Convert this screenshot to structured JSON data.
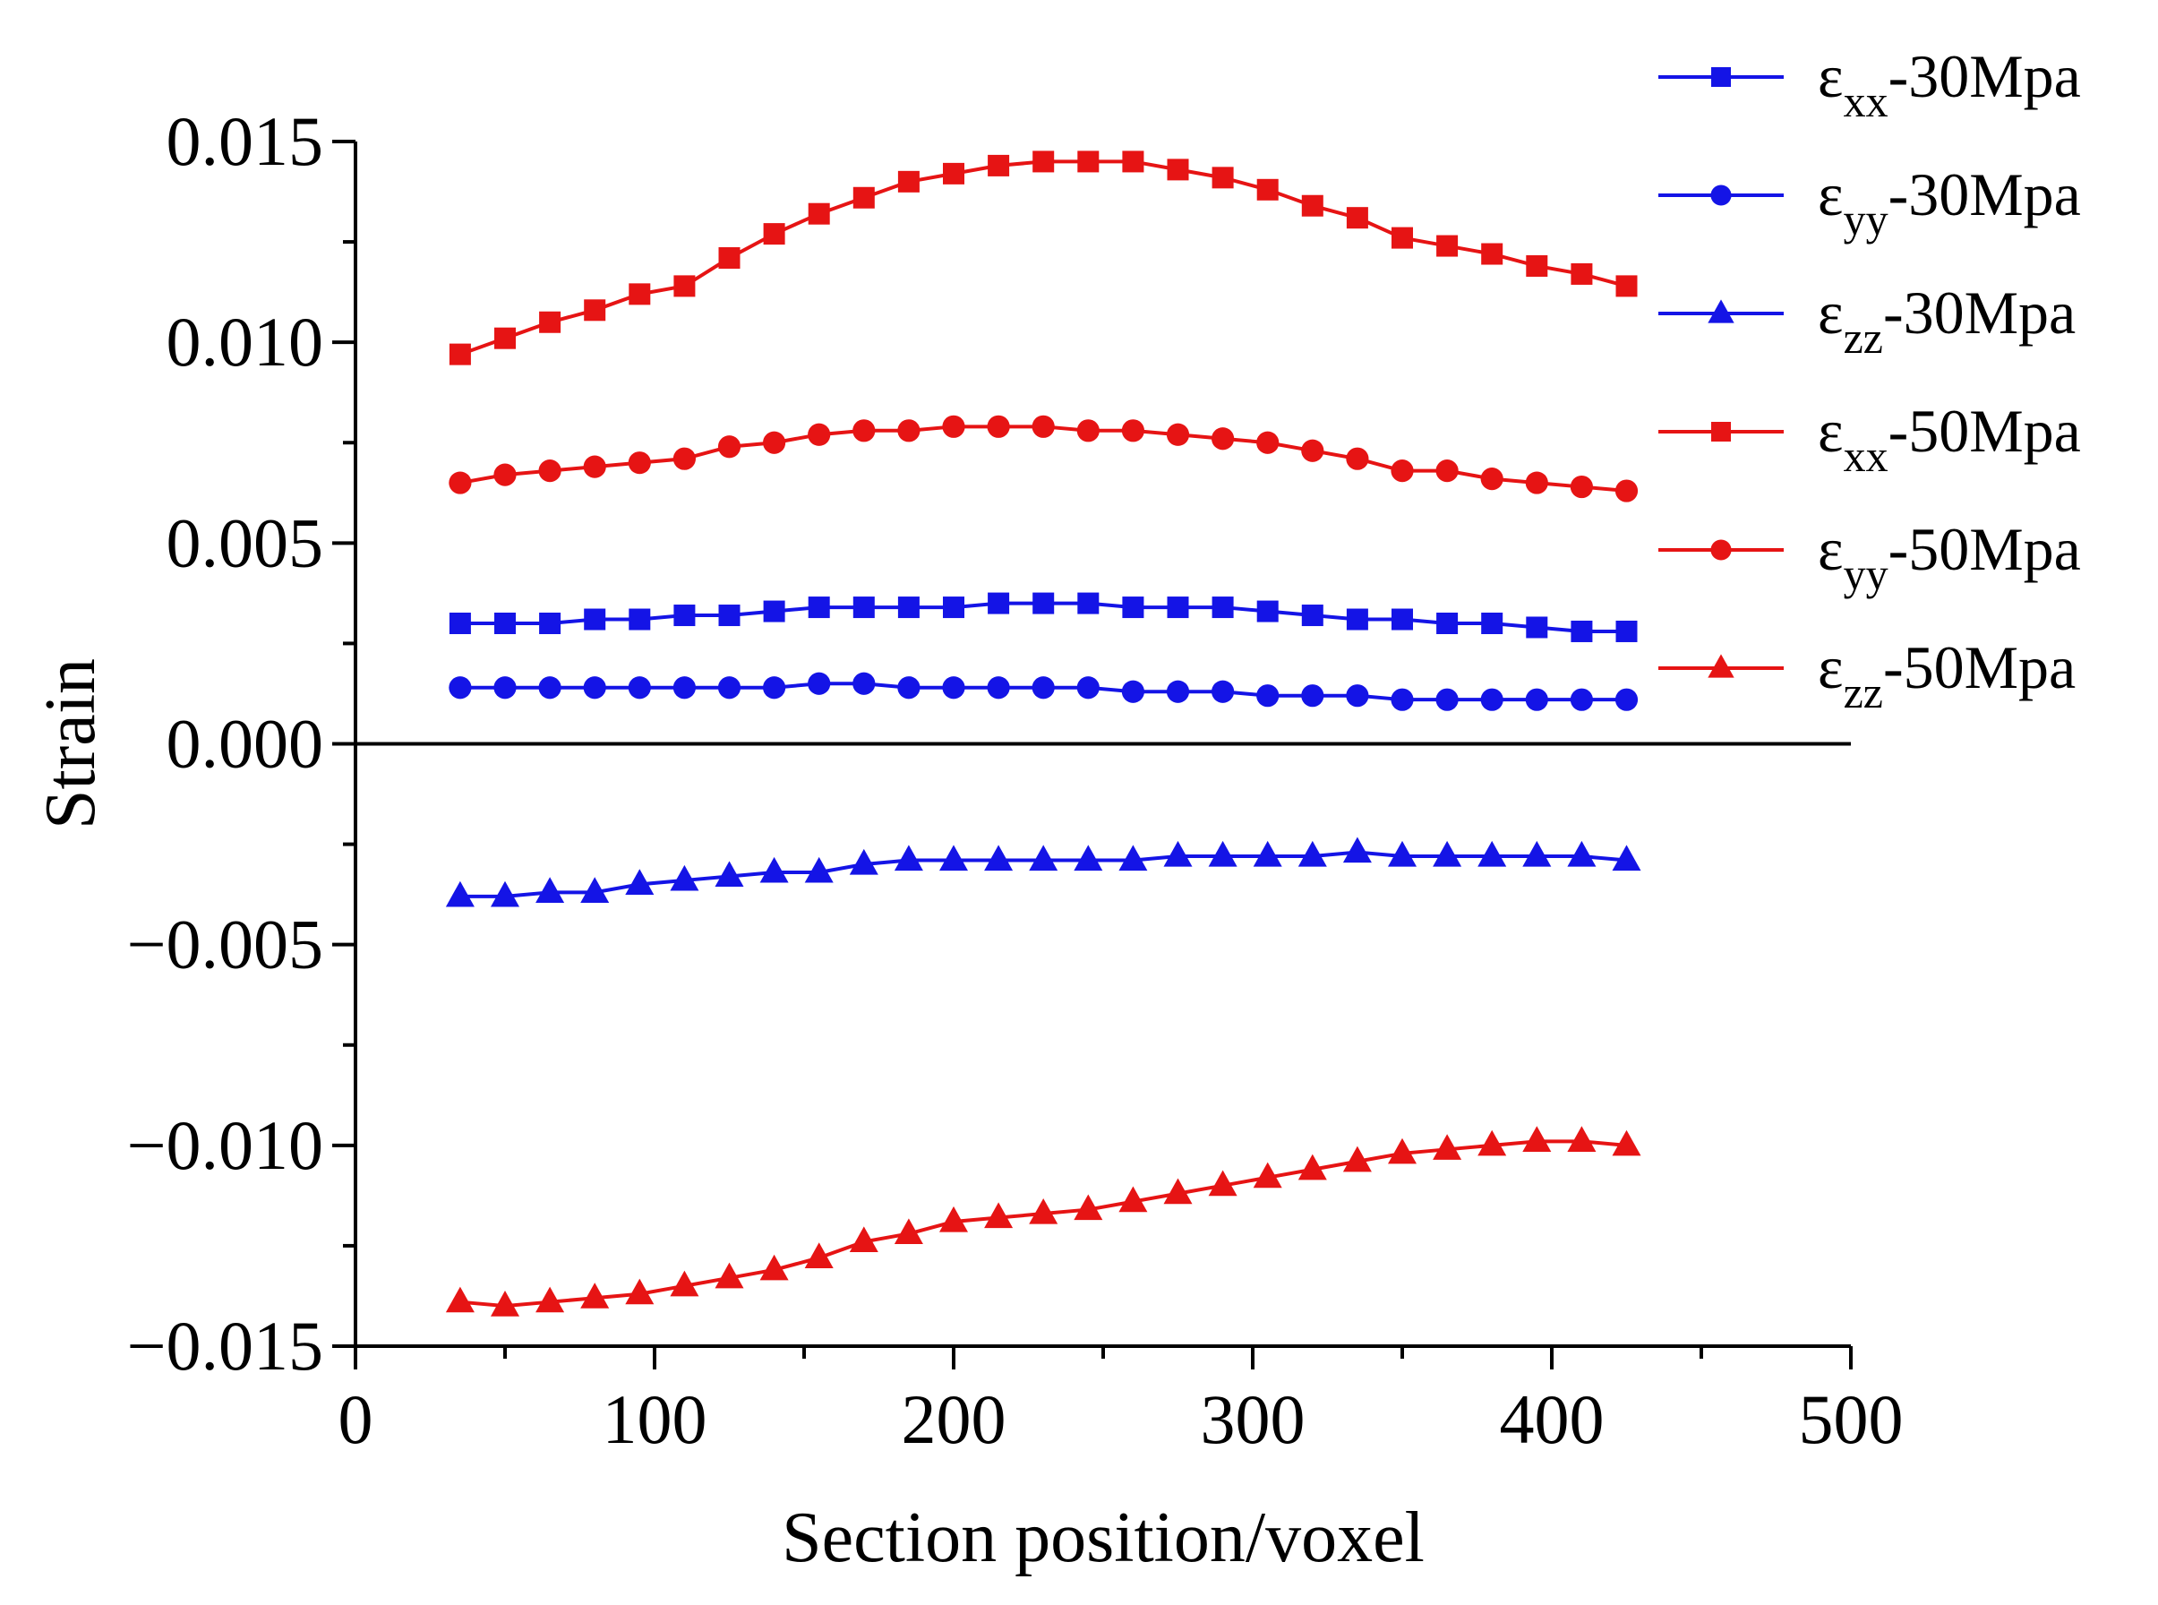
{
  "chart_data": {
    "type": "line",
    "title": "",
    "xlabel": "Section position/voxel",
    "ylabel": "Strain",
    "xlim": [
      0,
      500
    ],
    "ylim": [
      -0.015,
      0.015
    ],
    "x_ticks": [
      0,
      100,
      200,
      300,
      400,
      500
    ],
    "x_tick_labels": [
      "0",
      "100",
      "200",
      "300",
      "400",
      "500"
    ],
    "y_ticks": [
      -0.015,
      -0.01,
      -0.005,
      0,
      0.005,
      0.01,
      0.015
    ],
    "y_tick_labels": [
      "−0.015",
      "−0.010",
      "−0.005",
      "0.000",
      "0.005",
      "0.010",
      "0.015"
    ],
    "legend_position": "top-right",
    "x": [
      35,
      50,
      65,
      80,
      95,
      110,
      125,
      140,
      155,
      170,
      185,
      200,
      215,
      230,
      245,
      260,
      275,
      290,
      305,
      320,
      335,
      350,
      365,
      380,
      395,
      410,
      425
    ],
    "series": [
      {
        "name": "εxx-30Mpa",
        "label_main": "ε",
        "label_sub": "xx",
        "label_suffix": "-30Mpa",
        "color": "#1414e6",
        "marker": "square",
        "values": [
          0.003,
          0.003,
          0.003,
          0.0031,
          0.0031,
          0.0032,
          0.0032,
          0.0033,
          0.0034,
          0.0034,
          0.0034,
          0.0034,
          0.0035,
          0.0035,
          0.0035,
          0.0034,
          0.0034,
          0.0034,
          0.0033,
          0.0032,
          0.0031,
          0.0031,
          0.003,
          0.003,
          0.0029,
          0.0028,
          0.0028
        ]
      },
      {
        "name": "εyy-30Mpa",
        "label_main": "ε",
        "label_sub": "yy",
        "label_suffix": "-30Mpa",
        "color": "#1414e6",
        "marker": "circle",
        "values": [
          0.0014,
          0.0014,
          0.0014,
          0.0014,
          0.0014,
          0.0014,
          0.0014,
          0.0014,
          0.0015,
          0.0015,
          0.0014,
          0.0014,
          0.0014,
          0.0014,
          0.0014,
          0.0013,
          0.0013,
          0.0013,
          0.0012,
          0.0012,
          0.0012,
          0.0011,
          0.0011,
          0.0011,
          0.0011,
          0.0011,
          0.0011
        ]
      },
      {
        "name": "εzz-30Mpa",
        "label_main": "ε",
        "label_sub": "zz",
        "label_suffix": "-30Mpa",
        "color": "#1414e6",
        "marker": "triangle",
        "values": [
          -0.0038,
          -0.0038,
          -0.0037,
          -0.0037,
          -0.0035,
          -0.0034,
          -0.0033,
          -0.0032,
          -0.0032,
          -0.003,
          -0.0029,
          -0.0029,
          -0.0029,
          -0.0029,
          -0.0029,
          -0.0029,
          -0.0028,
          -0.0028,
          -0.0028,
          -0.0028,
          -0.0027,
          -0.0028,
          -0.0028,
          -0.0028,
          -0.0028,
          -0.0028,
          -0.0029
        ]
      },
      {
        "name": "εxx-50Mpa",
        "label_main": "ε",
        "label_sub": "xx",
        "label_suffix": "-50Mpa",
        "color": "#e61414",
        "marker": "square",
        "values": [
          0.0097,
          0.0101,
          0.0105,
          0.0108,
          0.0112,
          0.0114,
          0.0121,
          0.0127,
          0.0132,
          0.0136,
          0.014,
          0.0142,
          0.0144,
          0.0145,
          0.0145,
          0.0145,
          0.0143,
          0.0141,
          0.0138,
          0.0134,
          0.0131,
          0.0126,
          0.0124,
          0.0122,
          0.0119,
          0.0117,
          0.0114
        ]
      },
      {
        "name": "εyy-50Mpa",
        "label_main": "ε",
        "label_sub": "yy",
        "label_suffix": "-50Mpa",
        "color": "#e61414",
        "marker": "circle",
        "values": [
          0.0065,
          0.0067,
          0.0068,
          0.0069,
          0.007,
          0.0071,
          0.0074,
          0.0075,
          0.0077,
          0.0078,
          0.0078,
          0.0079,
          0.0079,
          0.0079,
          0.0078,
          0.0078,
          0.0077,
          0.0076,
          0.0075,
          0.0073,
          0.0071,
          0.0068,
          0.0068,
          0.0066,
          0.0065,
          0.0064,
          0.0063
        ]
      },
      {
        "name": "εzz-50Mpa",
        "label_main": "ε",
        "label_sub": "zz",
        "label_suffix": "-50Mpa",
        "color": "#e61414",
        "marker": "triangle",
        "values": [
          -0.0139,
          -0.014,
          -0.0139,
          -0.0138,
          -0.0137,
          -0.0135,
          -0.0133,
          -0.0131,
          -0.0128,
          -0.0124,
          -0.0122,
          -0.0119,
          -0.0118,
          -0.0117,
          -0.0116,
          -0.0114,
          -0.0112,
          -0.011,
          -0.0108,
          -0.0106,
          -0.0104,
          -0.0102,
          -0.0101,
          -0.01,
          -0.0099,
          -0.0099,
          -0.01
        ]
      }
    ]
  }
}
